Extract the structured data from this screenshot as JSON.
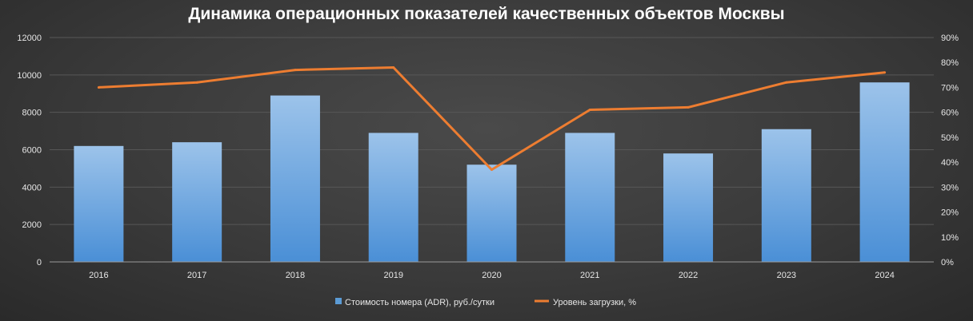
{
  "chart_data": {
    "type": "bar",
    "title": "Динамика операционных показателей качественных объектов Москвы",
    "categories": [
      "2016",
      "2017",
      "2018",
      "2019",
      "2020",
      "2021",
      "2022",
      "2023",
      "2024"
    ],
    "series": [
      {
        "name": "Стоимость номера (ADR), руб./сутки",
        "type": "bar",
        "axis": "left",
        "color": "#5b9bd5",
        "values": [
          6200,
          6400,
          8900,
          6900,
          5200,
          6900,
          5800,
          7100,
          9600
        ]
      },
      {
        "name": "Уровень загрузки, %",
        "type": "line",
        "axis": "right",
        "color": "#ed7d31",
        "values": [
          70,
          72,
          77,
          78,
          37,
          61,
          62,
          72,
          76
        ]
      }
    ],
    "y_left": {
      "ylim": [
        0,
        12000
      ],
      "ticks": [
        "0",
        "2000",
        "4000",
        "6000",
        "8000",
        "10000",
        "12000"
      ]
    },
    "y_right": {
      "ylim": [
        0,
        90
      ],
      "ticks": [
        "0%",
        "10%",
        "20%",
        "30%",
        "40%",
        "50%",
        "60%",
        "70%",
        "80%",
        "90%"
      ]
    },
    "grid": true,
    "legend": "bottom"
  }
}
